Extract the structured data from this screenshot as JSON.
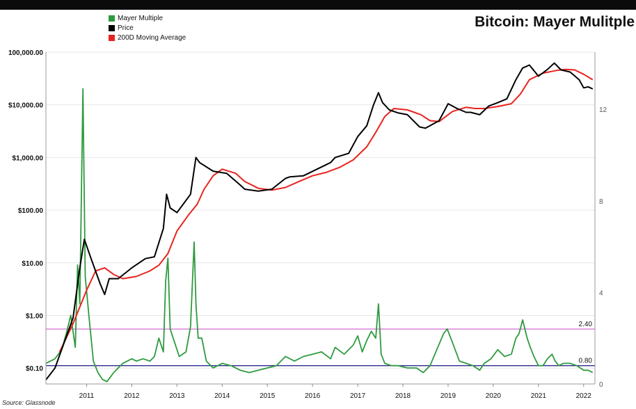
{
  "chart_data": {
    "type": "line",
    "title": "Bitcoin: Mayer Mulitple",
    "source": "Source: Glassnode",
    "legend": [
      {
        "name": "Mayer Multiple",
        "color": "#2e9a3e"
      },
      {
        "name": "Price",
        "color": "#000000"
      },
      {
        "name": "200D Moving Average",
        "color": "#e8231e"
      }
    ],
    "x_ticks": [
      "2011",
      "2012",
      "2013",
      "2014",
      "2015",
      "2016",
      "2017",
      "2018",
      "2019",
      "2020",
      "2021",
      "2022"
    ],
    "x_range": [
      2010.6,
      2022.75
    ],
    "left_axis": {
      "scale": "log",
      "ylim": [
        0.05,
        100000
      ],
      "ticks": [
        {
          "value": 100000,
          "label": "100,000.00"
        },
        {
          "value": 10000,
          "label": "$10,000.00"
        },
        {
          "value": 1000,
          "label": "$1,000.00"
        },
        {
          "value": 100,
          "label": "$100.00"
        },
        {
          "value": 10,
          "label": "$10.00"
        },
        {
          "value": 1,
          "label": "$1.00"
        },
        {
          "value": 0.1,
          "label": "$0.10"
        }
      ]
    },
    "right_axis": {
      "scale": "linear",
      "ylim": [
        0,
        14.5
      ],
      "ticks": [
        {
          "value": 0,
          "label": "0"
        },
        {
          "value": 4,
          "label": "4"
        },
        {
          "value": 8,
          "label": "8"
        },
        {
          "value": 12,
          "label": "12"
        }
      ]
    },
    "reference_lines": [
      {
        "axis": "right",
        "value": 2.4,
        "label": "2.40",
        "color": "#d57ad6"
      },
      {
        "axis": "right",
        "value": 0.8,
        "label": "0.80",
        "color": "#2b2b8f"
      }
    ],
    "series": [
      {
        "name": "Price",
        "axis": "left",
        "color": "#000000",
        "x": [
          2010.6,
          2010.8,
          2011.0,
          2011.2,
          2011.35,
          2011.45,
          2011.6,
          2011.8,
          2011.9,
          2012.0,
          2012.2,
          2012.5,
          2012.8,
          2013.0,
          2013.2,
          2013.27,
          2013.35,
          2013.5,
          2013.8,
          2013.92,
          2014.0,
          2014.3,
          2014.6,
          2014.9,
          2015.0,
          2015.3,
          2015.6,
          2015.9,
          2016.0,
          2016.3,
          2016.6,
          2016.9,
          2017.0,
          2017.3,
          2017.5,
          2017.7,
          2017.85,
          2017.96,
          2018.05,
          2018.2,
          2018.4,
          2018.6,
          2018.87,
          2019.0,
          2019.3,
          2019.5,
          2019.7,
          2019.9,
          2020.0,
          2020.2,
          2020.4,
          2020.6,
          2020.8,
          2021.0,
          2021.15,
          2021.3,
          2021.5,
          2021.7,
          2021.85,
          2022.0,
          2022.2,
          2022.4,
          2022.5,
          2022.6,
          2022.7
        ],
        "values": [
          0.06,
          0.1,
          0.3,
          0.9,
          8,
          28,
          12,
          4,
          2.5,
          5,
          5,
          8,
          12,
          13,
          45,
          200,
          110,
          90,
          200,
          1000,
          800,
          550,
          500,
          300,
          250,
          230,
          250,
          400,
          430,
          450,
          600,
          800,
          1000,
          1200,
          2500,
          4000,
          10000,
          17000,
          11000,
          8000,
          7000,
          6500,
          3800,
          3600,
          5000,
          10500,
          8500,
          7200,
          7200,
          6500,
          9500,
          11000,
          13000,
          30000,
          50000,
          57000,
          35000,
          47000,
          62000,
          46000,
          42000,
          30000,
          21000,
          22000,
          20000
        ]
      },
      {
        "name": "200D Moving Average",
        "axis": "left",
        "color": "#e8231e",
        "x": [
          2010.9,
          2011.2,
          2011.5,
          2011.7,
          2011.9,
          2012.1,
          2012.3,
          2012.6,
          2012.9,
          2013.1,
          2013.3,
          2013.5,
          2013.75,
          2013.95,
          2014.1,
          2014.3,
          2014.5,
          2014.8,
          2015.0,
          2015.3,
          2015.6,
          2015.9,
          2016.2,
          2016.5,
          2016.8,
          2017.1,
          2017.4,
          2017.7,
          2017.9,
          2018.1,
          2018.3,
          2018.6,
          2018.9,
          2019.1,
          2019.3,
          2019.6,
          2019.9,
          2020.1,
          2020.3,
          2020.6,
          2020.9,
          2021.1,
          2021.3,
          2021.6,
          2021.9,
          2022.1,
          2022.3,
          2022.5,
          2022.7
        ],
        "values": [
          0.2,
          0.7,
          3,
          7,
          8,
          6,
          5,
          5.5,
          7,
          9,
          15,
          40,
          80,
          130,
          250,
          450,
          600,
          500,
          350,
          260,
          240,
          270,
          350,
          450,
          520,
          650,
          900,
          1600,
          3000,
          6000,
          8500,
          8000,
          6500,
          5000,
          4800,
          7500,
          9000,
          8500,
          8500,
          9300,
          10500,
          16000,
          30000,
          40000,
          45000,
          47000,
          46000,
          38000,
          30000
        ]
      },
      {
        "name": "Mayer Multiple",
        "axis": "right",
        "color": "#2e9a3e",
        "x": [
          2010.6,
          2010.8,
          2010.95,
          2011.05,
          2011.15,
          2011.25,
          2011.3,
          2011.35,
          2011.42,
          2011.47,
          2011.55,
          2011.65,
          2011.75,
          2011.85,
          2011.95,
          2012.1,
          2012.3,
          2012.5,
          2012.6,
          2012.75,
          2012.9,
          2013.0,
          2013.1,
          2013.2,
          2013.25,
          2013.3,
          2013.35,
          2013.45,
          2013.55,
          2013.7,
          2013.8,
          2013.88,
          2013.92,
          2013.97,
          2014.05,
          2014.15,
          2014.3,
          2014.5,
          2014.7,
          2014.9,
          2015.1,
          2015.3,
          2015.5,
          2015.7,
          2015.9,
          2016.1,
          2016.3,
          2016.5,
          2016.7,
          2016.9,
          2017.0,
          2017.2,
          2017.4,
          2017.5,
          2017.6,
          2017.7,
          2017.8,
          2017.9,
          2017.96,
          2018.02,
          2018.1,
          2018.25,
          2018.4,
          2018.6,
          2018.8,
          2018.95,
          2019.1,
          2019.25,
          2019.4,
          2019.48,
          2019.6,
          2019.75,
          2019.9,
          2020.05,
          2020.2,
          2020.3,
          2020.45,
          2020.6,
          2020.75,
          2020.9,
          2021.0,
          2021.07,
          2021.15,
          2021.25,
          2021.32,
          2021.4,
          2021.5,
          2021.6,
          2021.7,
          2021.8,
          2021.87,
          2021.95,
          2022.05,
          2022.2,
          2022.35,
          2022.5,
          2022.6,
          2022.7
        ],
        "values": [
          0.9,
          1.1,
          1.5,
          2.2,
          3.0,
          1.6,
          5.2,
          3.5,
          12.9,
          4.7,
          3.0,
          1.0,
          0.5,
          0.2,
          0.1,
          0.5,
          0.9,
          1.1,
          1.0,
          1.1,
          1.0,
          1.2,
          2.0,
          1.4,
          4.5,
          5.5,
          2.4,
          1.8,
          1.2,
          1.4,
          2.5,
          6.2,
          3.5,
          2.0,
          2.0,
          1.0,
          0.7,
          0.9,
          0.8,
          0.6,
          0.5,
          0.6,
          0.7,
          0.8,
          1.2,
          1.0,
          1.2,
          1.3,
          1.4,
          1.1,
          1.6,
          1.3,
          1.7,
          2.1,
          1.4,
          1.9,
          2.3,
          2.0,
          3.5,
          1.3,
          0.9,
          0.8,
          0.8,
          0.7,
          0.7,
          0.5,
          0.8,
          1.5,
          2.2,
          2.4,
          1.8,
          1.0,
          0.9,
          0.8,
          0.6,
          0.9,
          1.1,
          1.5,
          1.2,
          1.3,
          2.0,
          2.2,
          2.8,
          2.0,
          1.6,
          1.2,
          0.8,
          0.8,
          1.1,
          1.3,
          1.0,
          0.8,
          0.9,
          0.9,
          0.8,
          0.6,
          0.6,
          0.5
        ]
      }
    ]
  }
}
